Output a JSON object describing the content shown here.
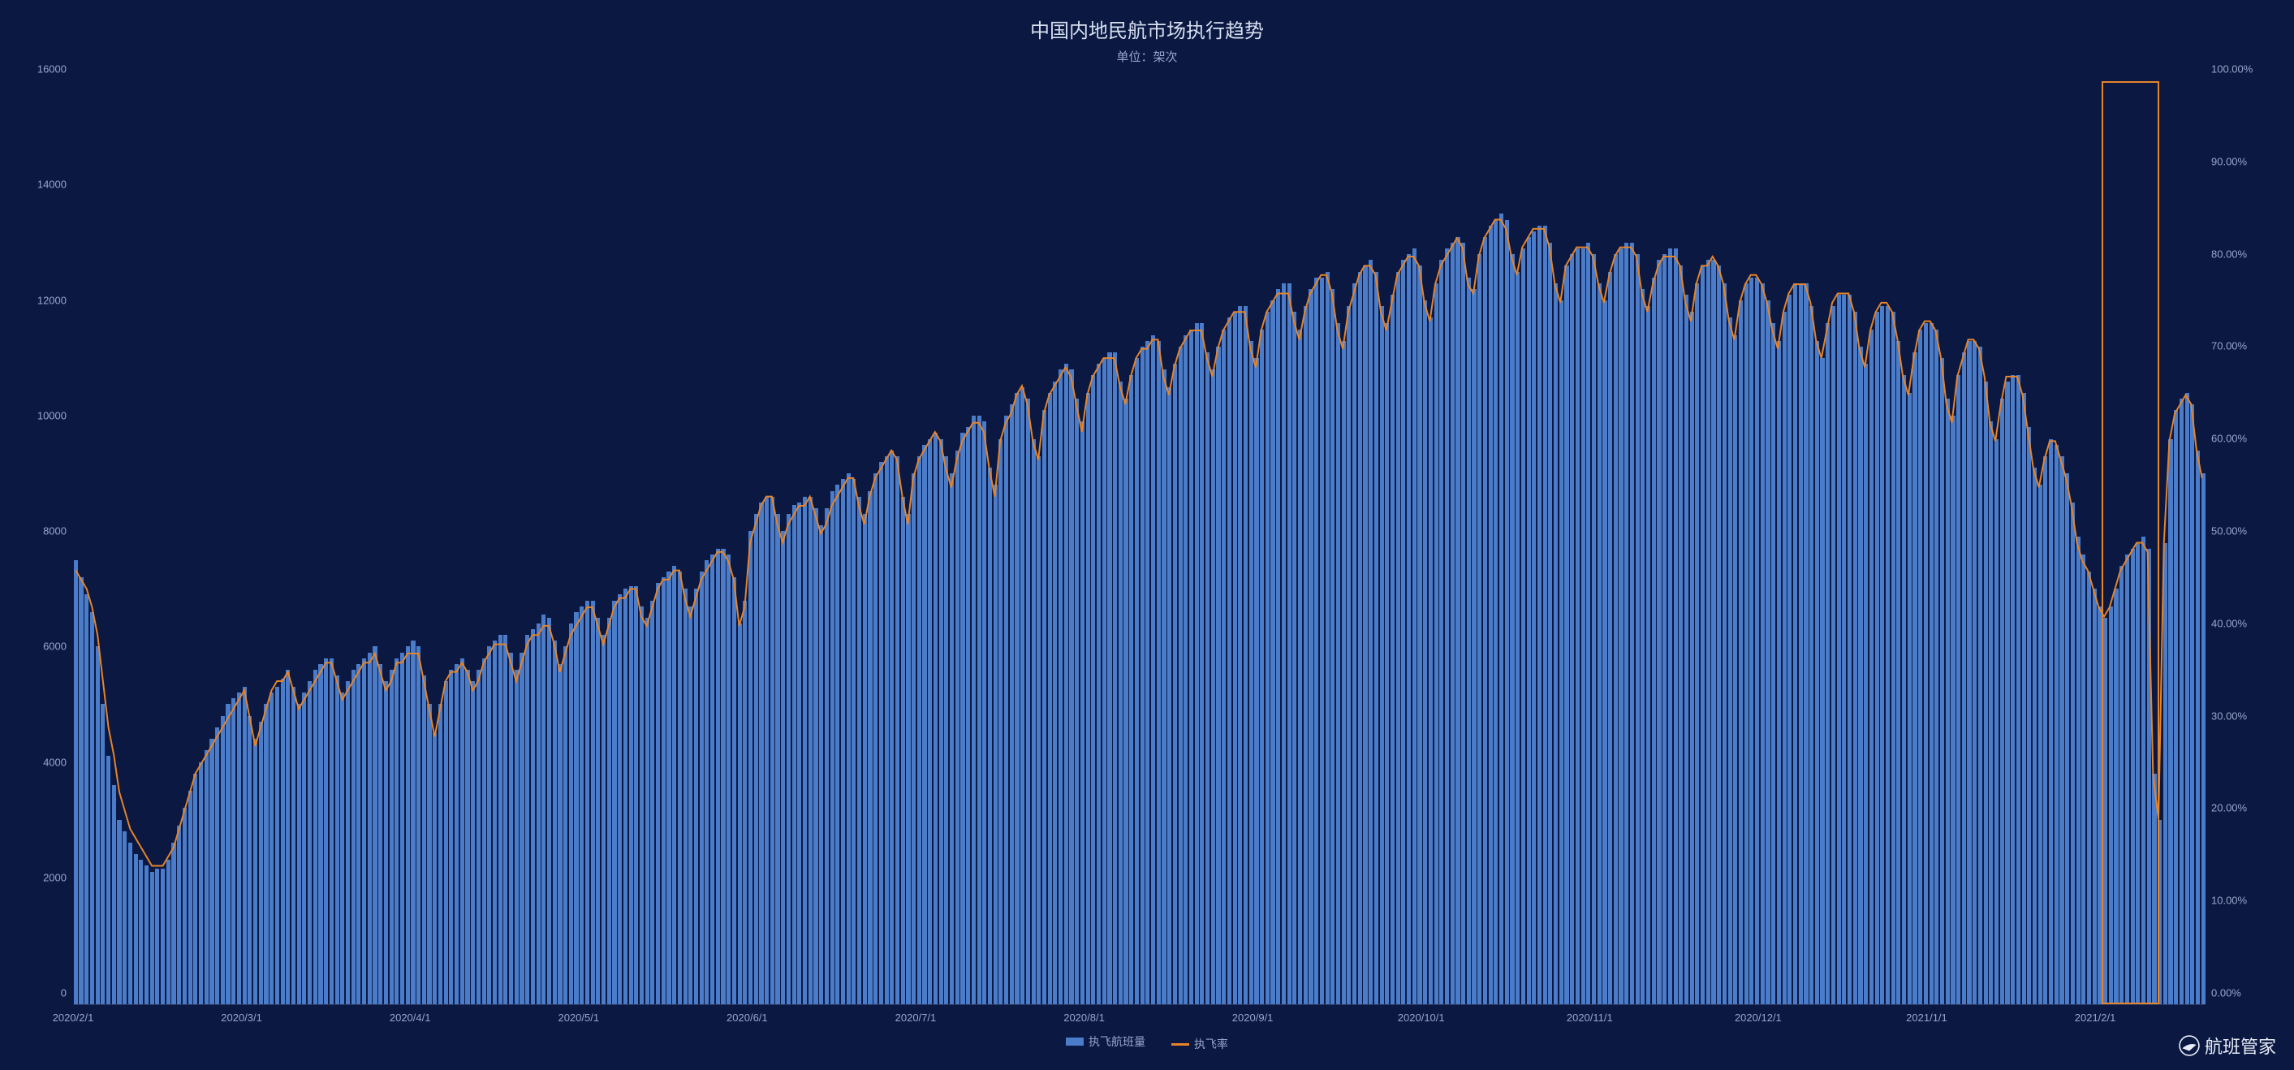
{
  "title": "中国内地民航市场执行趋势",
  "subtitle": "单位：架次",
  "legend": {
    "bars": "执飞航班量",
    "line": "执飞率"
  },
  "brand": "航班管家",
  "chart": {
    "type": "bar+line-dual-axis",
    "background_color": "#0a1842",
    "bar_color": "#4a7cc9",
    "line_color": "#e6842a",
    "line_width": 2,
    "text_color": "#9aa5c9",
    "title_color": "#d8dff0",
    "title_fontsize": 24,
    "label_fontsize": 13,
    "y_left": {
      "min": 0,
      "max": 16000,
      "step": 2000
    },
    "y_right": {
      "min": 0,
      "max": 100,
      "step": 10,
      "suffix": ".00%"
    },
    "x_ticks": [
      "2020/2/1",
      "2020/3/1",
      "2020/4/1",
      "2020/5/1",
      "2020/6/1",
      "2020/7/1",
      "2020/8/1",
      "2020/9/1",
      "2020/10/1",
      "2020/11/1",
      "2020/12/1",
      "2021/1/1",
      "2021/2/1"
    ],
    "highlight_box": {
      "from_index": 373,
      "to_index": 383,
      "border_color": "#e6842a"
    },
    "bar_values": [
      7700,
      7400,
      7100,
      6800,
      6200,
      5200,
      4300,
      3800,
      3200,
      3000,
      2800,
      2600,
      2500,
      2400,
      2300,
      2350,
      2350,
      2500,
      2800,
      3100,
      3400,
      3700,
      4000,
      4200,
      4400,
      4600,
      4800,
      5000,
      5200,
      5300,
      5400,
      5500,
      5000,
      4600,
      4900,
      5200,
      5400,
      5500,
      5650,
      5800,
      5500,
      5200,
      5400,
      5600,
      5800,
      5900,
      6000,
      6000,
      5700,
      5400,
      5600,
      5800,
      5900,
      6000,
      6100,
      6200,
      5900,
      5600,
      5800,
      6000,
      6100,
      6200,
      6300,
      6200,
      5700,
      5200,
      4700,
      5200,
      5600,
      5800,
      5900,
      6000,
      5800,
      5600,
      5800,
      6000,
      6200,
      6300,
      6400,
      6400,
      6100,
      5800,
      6100,
      6400,
      6500,
      6600,
      6750,
      6700,
      6300,
      5900,
      6200,
      6600,
      6800,
      6900,
      7000,
      7000,
      6700,
      6400,
      6700,
      7000,
      7100,
      7200,
      7250,
      7250,
      6900,
      6700,
      7000,
      7300,
      7400,
      7500,
      7600,
      7500,
      7200,
      6900,
      7200,
      7500,
      7700,
      7800,
      7900,
      7900,
      7800,
      7400,
      6600,
      7000,
      8200,
      8500,
      8700,
      8800,
      8800,
      8500,
      8200,
      8500,
      8650,
      8700,
      8800,
      8800,
      8600,
      8300,
      8600,
      8900,
      9000,
      9100,
      9200,
      9100,
      8800,
      8500,
      8900,
      9200,
      9400,
      9500,
      9600,
      9500,
      8800,
      8500,
      9200,
      9500,
      9700,
      9800,
      9900,
      9800,
      9500,
      9200,
      9600,
      9900,
      10000,
      10200,
      10200,
      10100,
      9300,
      9000,
      9800,
      10200,
      10400,
      10600,
      10700,
      10500,
      9800,
      9500,
      10300,
      10600,
      10800,
      11000,
      11100,
      11000,
      10500,
      10100,
      10600,
      10900,
      11100,
      11200,
      11300,
      11300,
      10800,
      10500,
      10900,
      11200,
      11400,
      11500,
      11600,
      11500,
      11000,
      10700,
      11100,
      11400,
      11600,
      11700,
      11800,
      11800,
      11300,
      11000,
      11400,
      11700,
      11900,
      12000,
      12100,
      12100,
      11500,
      11200,
      11700,
      12000,
      12200,
      12400,
      12500,
      12500,
      12000,
      11700,
      12100,
      12400,
      12600,
      12600,
      12700,
      12400,
      11800,
      11500,
      12100,
      12500,
      12700,
      12800,
      12900,
      12700,
      12100,
      11800,
      12300,
      12700,
      12900,
      13000,
      13100,
      12800,
      12200,
      11900,
      12500,
      12900,
      13100,
      13200,
      13300,
      13200,
      12600,
      12400,
      13000,
      13300,
      13500,
      13600,
      13700,
      13600,
      13000,
      12700,
      13100,
      13300,
      13400,
      13500,
      13500,
      13200,
      12500,
      12200,
      12800,
      13000,
      13100,
      13100,
      13200,
      13000,
      12500,
      12200,
      12700,
      13000,
      13100,
      13200,
      13200,
      13000,
      12400,
      12100,
      12600,
      12900,
      13000,
      13100,
      13100,
      12800,
      12300,
      12000,
      12500,
      12800,
      12900,
      12900,
      12800,
      12500,
      11900,
      11600,
      12200,
      12500,
      12600,
      12600,
      12500,
      12200,
      11800,
      11500,
      12000,
      12300,
      12500,
      12500,
      12500,
      12100,
      11500,
      11200,
      11800,
      12100,
      12300,
      12300,
      12300,
      12000,
      11400,
      11100,
      11700,
      12000,
      12100,
      12100,
      12000,
      11500,
      10900,
      10600,
      11300,
      11700,
      11800,
      11800,
      11700,
      11200,
      10500,
      10200,
      10900,
      11300,
      11500,
      11500,
      11400,
      10800,
      10100,
      9800,
      10500,
      10800,
      10900,
      10900,
      10600,
      10000,
      9300,
      9000,
      9500,
      9800,
      9700,
      9500,
      9200,
      8700,
      8100,
      7800,
      7500,
      7200,
      6900,
      6700,
      6900,
      7200,
      7600,
      7800,
      7900,
      8000,
      8100,
      7900,
      4000,
      3200,
      8000,
      9800,
      10300,
      10500,
      10600,
      10400,
      9600,
      9200
    ],
    "line_values_pct": [
      47,
      46,
      45,
      43,
      40,
      35,
      30,
      27,
      23,
      21,
      19,
      18,
      17,
      16,
      15,
      15,
      15,
      16,
      17,
      19,
      21,
      23,
      25,
      26,
      27,
      28,
      29,
      30,
      31,
      32,
      33,
      34,
      31,
      28,
      30,
      32,
      34,
      35,
      35,
      36,
      34,
      32,
      33,
      34,
      35,
      36,
      37,
      37,
      35,
      33,
      34,
      35,
      36,
      37,
      37,
      38,
      36,
      34,
      35,
      37,
      37,
      38,
      38,
      38,
      35,
      32,
      29,
      32,
      35,
      36,
      36,
      37,
      36,
      34,
      35,
      37,
      38,
      39,
      39,
      39,
      37,
      35,
      37,
      39,
      40,
      40,
      41,
      41,
      39,
      36,
      38,
      40,
      41,
      42,
      43,
      43,
      41,
      39,
      41,
      43,
      44,
      44,
      45,
      45,
      42,
      41,
      43,
      45,
      46,
      46,
      47,
      47,
      44,
      42,
      44,
      46,
      47,
      48,
      49,
      49,
      48,
      46,
      41,
      43,
      50,
      52,
      54,
      55,
      55,
      52,
      50,
      52,
      53,
      54,
      54,
      55,
      53,
      51,
      52,
      54,
      55,
      56,
      57,
      57,
      54,
      52,
      55,
      57,
      58,
      59,
      60,
      59,
      55,
      52,
      57,
      59,
      60,
      61,
      62,
      61,
      58,
      56,
      59,
      61,
      62,
      63,
      63,
      62,
      58,
      55,
      61,
      63,
      64,
      66,
      67,
      65,
      61,
      59,
      64,
      66,
      67,
      68,
      69,
      68,
      65,
      62,
      66,
      68,
      69,
      70,
      70,
      70,
      67,
      65,
      68,
      70,
      71,
      71,
      72,
      72,
      68,
      66,
      69,
      71,
      72,
      73,
      73,
      73,
      70,
      68,
      71,
      73,
      74,
      75,
      75,
      75,
      71,
      69,
      73,
      75,
      76,
      77,
      77,
      77,
      74,
      72,
      75,
      77,
      78,
      79,
      79,
      77,
      73,
      71,
      75,
      77,
      79,
      80,
      80,
      79,
      75,
      73,
      76,
      79,
      80,
      81,
      81,
      80,
      76,
      74,
      78,
      80,
      81,
      82,
      83,
      82,
      78,
      77,
      81,
      83,
      84,
      85,
      85,
      84,
      81,
      79,
      82,
      83,
      84,
      84,
      84,
      82,
      78,
      76,
      80,
      81,
      82,
      82,
      82,
      81,
      78,
      76,
      79,
      81,
      82,
      82,
      82,
      81,
      77,
      75,
      78,
      80,
      81,
      81,
      81,
      80,
      76,
      74,
      78,
      80,
      80,
      81,
      80,
      78,
      74,
      72,
      76,
      78,
      79,
      79,
      78,
      76,
      73,
      71,
      75,
      77,
      78,
      78,
      78,
      76,
      72,
      70,
      73,
      76,
      77,
      77,
      77,
      75,
      71,
      69,
      73,
      75,
      76,
      76,
      75,
      72,
      68,
      66,
      70,
      73,
      74,
      74,
      73,
      70,
      65,
      63,
      68,
      70,
      72,
      72,
      71,
      68,
      63,
      61,
      65,
      68,
      68,
      68,
      66,
      62,
      58,
      56,
      59,
      61,
      61,
      59,
      57,
      54,
      50,
      48,
      47,
      45,
      43,
      42,
      43,
      45,
      47,
      48,
      49,
      50,
      50,
      49,
      25,
      20,
      50,
      61,
      64,
      65,
      66,
      65,
      60,
      57
    ]
  }
}
